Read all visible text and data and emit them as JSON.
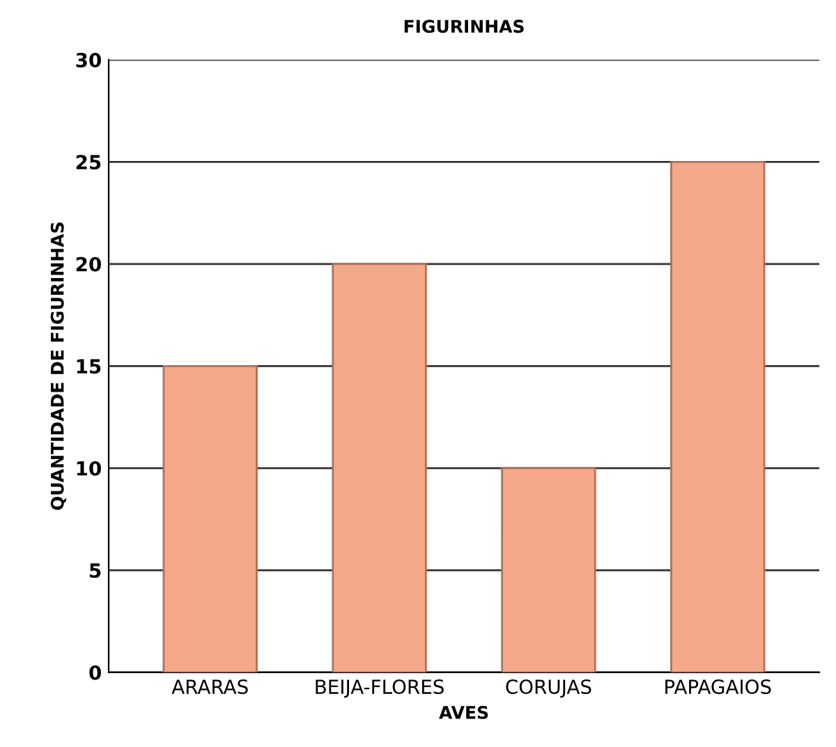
{
  "chart_data": {
    "type": "bar",
    "title": "FIGURINHAS",
    "xlabel": "AVES",
    "ylabel": "QUANTIDADE DE FIGURINHAS",
    "categories": [
      "ARARAS",
      "BEIJA-FLORES",
      "CORUJAS",
      "PAPAGAIOS"
    ],
    "values": [
      15,
      20,
      10,
      25
    ],
    "color": "#f5a88a",
    "ylim": [
      0,
      30
    ],
    "yticks": [
      0,
      5,
      10,
      15,
      20,
      25,
      30
    ],
    "grid": "y"
  }
}
